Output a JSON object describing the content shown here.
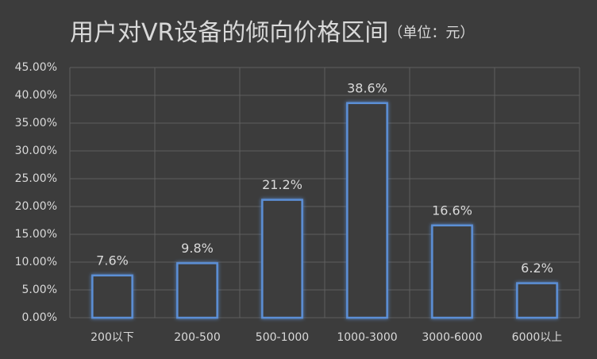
{
  "chart_data": {
    "type": "bar",
    "title": "用户对VR设备的倾向价格区间",
    "subtitle": "（单位：元）",
    "categories": [
      "200以下",
      "200-500",
      "500-1000",
      "1000-3000",
      "3000-6000",
      "6000以上"
    ],
    "values": [
      7.6,
      9.8,
      21.2,
      38.6,
      16.6,
      6.2
    ],
    "value_labels": [
      "7.6%",
      "9.8%",
      "21.2%",
      "38.6%",
      "16.6%",
      "6.2%"
    ],
    "color": "#5b8fd6",
    "ylim": [
      0,
      45
    ],
    "yticks": [
      {
        "value": 0,
        "label": "0.00%"
      },
      {
        "value": 5,
        "label": "5.00%"
      },
      {
        "value": 10,
        "label": "10.00%"
      },
      {
        "value": 15,
        "label": "15.00%"
      },
      {
        "value": 20,
        "label": "20.00%"
      },
      {
        "value": 25,
        "label": "25.00%"
      },
      {
        "value": 30,
        "label": "30.00%"
      },
      {
        "value": 35,
        "label": "35.00%"
      },
      {
        "value": 40,
        "label": "40.00%"
      },
      {
        "value": 45,
        "label": "45.00%"
      }
    ],
    "grid": true
  }
}
